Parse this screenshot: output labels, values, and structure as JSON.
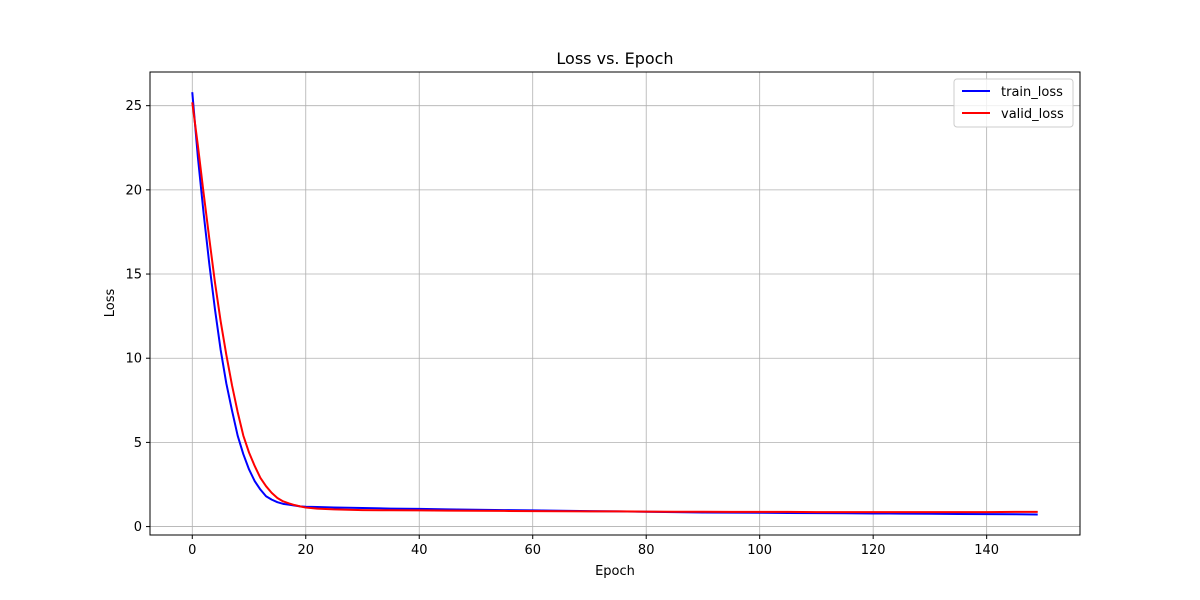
{
  "chart_data": {
    "type": "line",
    "title": "Loss vs. Epoch",
    "xlabel": "Epoch",
    "ylabel": "Loss",
    "xlim": [
      -7.45,
      156.45
    ],
    "ylim": [
      -0.5,
      27
    ],
    "xticks": [
      0,
      20,
      40,
      60,
      80,
      100,
      120,
      140
    ],
    "yticks": [
      0,
      5,
      10,
      15,
      20,
      25
    ],
    "grid": true,
    "legend_position": "top-right",
    "series": [
      {
        "name": "train_loss",
        "color": "#0000ff",
        "points": [
          [
            0,
            25.8
          ],
          [
            1,
            21.9
          ],
          [
            2,
            18.6
          ],
          [
            3,
            15.6
          ],
          [
            4,
            12.9
          ],
          [
            5,
            10.5
          ],
          [
            6,
            8.5
          ],
          [
            7,
            6.9
          ],
          [
            8,
            5.4
          ],
          [
            9,
            4.3
          ],
          [
            10,
            3.4
          ],
          [
            11,
            2.7
          ],
          [
            12,
            2.2
          ],
          [
            13,
            1.8
          ],
          [
            14,
            1.6
          ],
          [
            15,
            1.45
          ],
          [
            16,
            1.35
          ],
          [
            17,
            1.3
          ],
          [
            18,
            1.25
          ],
          [
            19,
            1.2
          ],
          [
            20,
            1.18
          ],
          [
            22,
            1.16
          ],
          [
            25,
            1.13
          ],
          [
            30,
            1.1
          ],
          [
            35,
            1.07
          ],
          [
            40,
            1.05
          ],
          [
            45,
            1.02
          ],
          [
            50,
            1.0
          ],
          [
            55,
            0.98
          ],
          [
            60,
            0.96
          ],
          [
            65,
            0.94
          ],
          [
            70,
            0.92
          ],
          [
            75,
            0.9
          ],
          [
            80,
            0.88
          ],
          [
            85,
            0.86
          ],
          [
            90,
            0.84
          ],
          [
            95,
            0.83
          ],
          [
            100,
            0.82
          ],
          [
            105,
            0.81
          ],
          [
            110,
            0.8
          ],
          [
            115,
            0.79
          ],
          [
            120,
            0.78
          ],
          [
            125,
            0.77
          ],
          [
            130,
            0.76
          ],
          [
            135,
            0.75
          ],
          [
            140,
            0.74
          ],
          [
            145,
            0.73
          ],
          [
            149,
            0.72
          ]
        ]
      },
      {
        "name": "valid_loss",
        "color": "#ff0000",
        "points": [
          [
            0,
            25.2
          ],
          [
            1,
            22.6
          ],
          [
            2,
            19.8
          ],
          [
            3,
            17.1
          ],
          [
            4,
            14.5
          ],
          [
            5,
            12.2
          ],
          [
            6,
            10.2
          ],
          [
            7,
            8.4
          ],
          [
            8,
            6.8
          ],
          [
            9,
            5.4
          ],
          [
            10,
            4.4
          ],
          [
            11,
            3.6
          ],
          [
            12,
            2.9
          ],
          [
            13,
            2.4
          ],
          [
            14,
            2.0
          ],
          [
            15,
            1.7
          ],
          [
            16,
            1.5
          ],
          [
            17,
            1.38
          ],
          [
            18,
            1.28
          ],
          [
            19,
            1.2
          ],
          [
            20,
            1.13
          ],
          [
            22,
            1.07
          ],
          [
            25,
            1.02
          ],
          [
            30,
            0.98
          ],
          [
            35,
            0.97
          ],
          [
            40,
            0.96
          ],
          [
            45,
            0.95
          ],
          [
            50,
            0.94
          ],
          [
            55,
            0.93
          ],
          [
            60,
            0.92
          ],
          [
            65,
            0.91
          ],
          [
            70,
            0.9
          ],
          [
            75,
            0.9
          ],
          [
            80,
            0.89
          ],
          [
            85,
            0.88
          ],
          [
            90,
            0.88
          ],
          [
            95,
            0.87
          ],
          [
            100,
            0.87
          ],
          [
            105,
            0.87
          ],
          [
            110,
            0.86
          ],
          [
            115,
            0.86
          ],
          [
            120,
            0.86
          ],
          [
            125,
            0.86
          ],
          [
            130,
            0.86
          ],
          [
            135,
            0.86
          ],
          [
            140,
            0.86
          ],
          [
            145,
            0.87
          ],
          [
            149,
            0.87
          ]
        ]
      }
    ]
  }
}
